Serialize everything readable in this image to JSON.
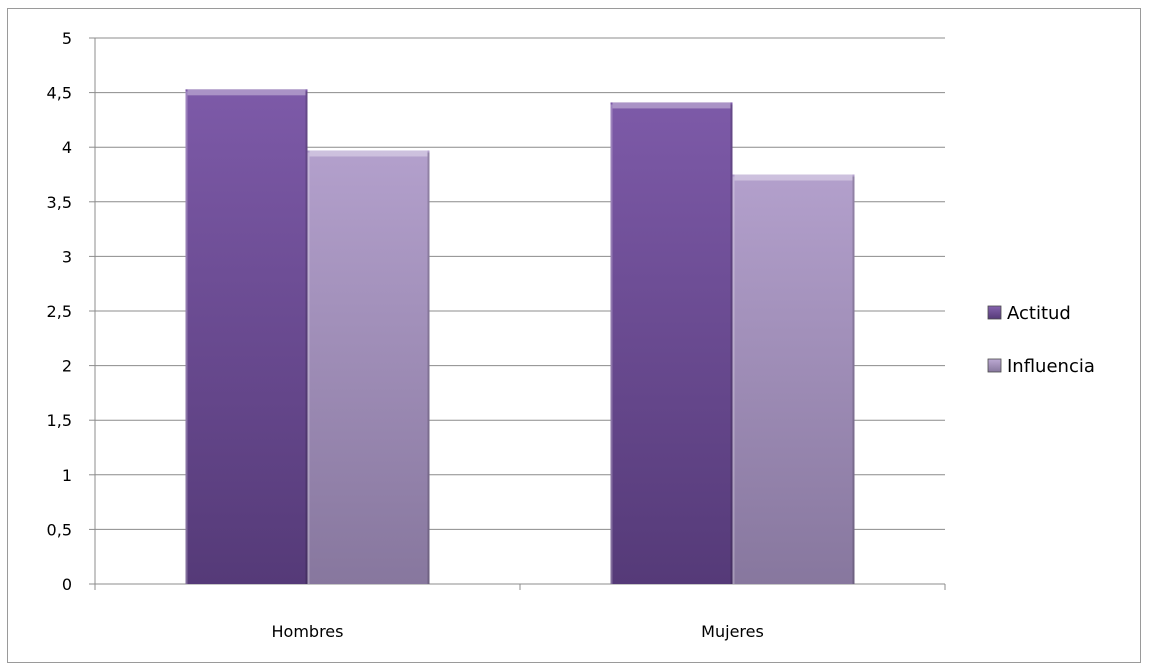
{
  "chart_data": {
    "type": "bar",
    "categories": [
      "Hombres",
      "Mujeres"
    ],
    "series": [
      {
        "name": "Actitud",
        "values": [
          4.53,
          4.41
        ],
        "color": "#6b4b91"
      },
      {
        "name": "Influencia",
        "values": [
          3.97,
          3.75
        ],
        "color": "#a694be"
      }
    ],
    "y_ticks": [
      "0",
      "0,5",
      "1",
      "1,5",
      "2",
      "2,5",
      "3",
      "3,5",
      "4",
      "4,5",
      "5"
    ],
    "ylim": [
      0,
      5
    ],
    "ytick_step": 0.5,
    "grid": true,
    "legend_position": "right",
    "title": "",
    "xlabel": "",
    "ylabel": ""
  }
}
